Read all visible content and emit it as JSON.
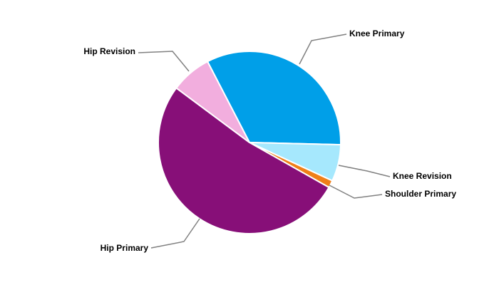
{
  "chart_data": {
    "type": "pie",
    "categories": [
      "Knee Primary",
      "Knee Revision",
      "Shoulder Primary",
      "Hip Primary",
      "Hip Revision"
    ],
    "values": [
      33,
      6.5,
      1.3,
      52,
      7.2
    ],
    "colors": [
      "#009fe8",
      "#a6e8fd",
      "#f07f18",
      "#870f78",
      "#f2aede"
    ]
  }
}
